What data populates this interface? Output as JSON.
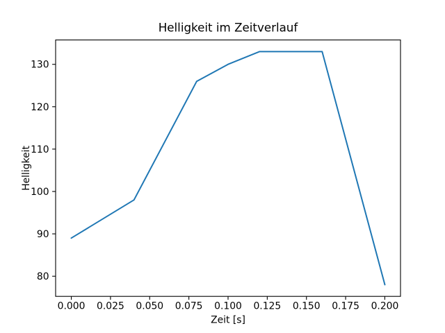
{
  "figure": {
    "background": "#ffffff"
  },
  "chart_data": {
    "type": "line",
    "title": "Helligkeit im Zeitverlauf",
    "xlabel": "Zeit [s]",
    "ylabel": "Helligkeit",
    "x": [
      0.0,
      0.04,
      0.08,
      0.1,
      0.12,
      0.16,
      0.2
    ],
    "y": [
      89,
      98,
      126,
      130,
      133,
      133,
      78
    ],
    "xlim": [
      -0.01,
      0.21
    ],
    "ylim": [
      75.25,
      135.75
    ],
    "xtick_values": [
      0.0,
      0.025,
      0.05,
      0.075,
      0.1,
      0.125,
      0.15,
      0.175,
      0.2
    ],
    "xtick_labels": [
      "0.000",
      "0.025",
      "0.050",
      "0.075",
      "0.100",
      "0.125",
      "0.150",
      "0.175",
      "0.200"
    ],
    "ytick_values": [
      80,
      90,
      100,
      110,
      120,
      130
    ],
    "ytick_labels": [
      "80",
      "90",
      "100",
      "110",
      "120",
      "130"
    ],
    "line_color": "#1f77b4",
    "axis_color": "#000000",
    "grid": false,
    "legend": false,
    "markers": false
  }
}
